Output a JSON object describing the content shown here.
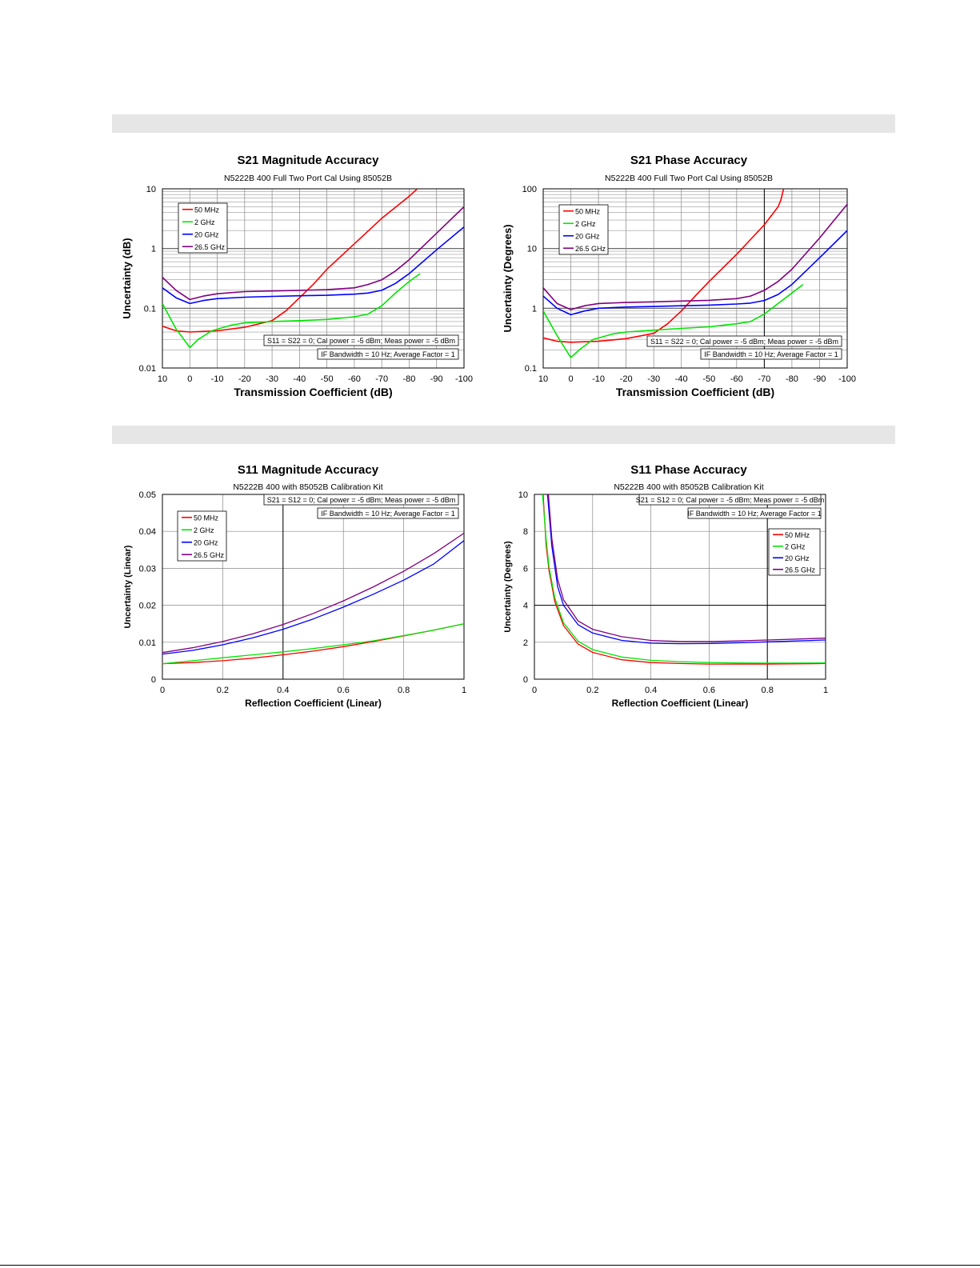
{
  "page": {
    "section_bars": [
      "",
      ""
    ]
  },
  "chart_data": [
    {
      "type": "line",
      "title": "S21 Magnitude Accuracy",
      "subtitle": "N5222B 400 Full Two Port Cal Using 85052B",
      "xlabel": "Transmission Coefficient (dB)",
      "ylabel": "Uncertainty (dB)",
      "xlim": [
        10,
        -100
      ],
      "ylim": [
        0.01,
        10
      ],
      "yscale": "log",
      "xticks": [
        10,
        0,
        -10,
        -20,
        -30,
        -40,
        -50,
        -60,
        -70,
        -80,
        -90,
        -100
      ],
      "yticks": [
        0.01,
        0.1,
        1,
        10
      ],
      "grid": true,
      "legend_position": "top-left",
      "annotations": [
        "S11 = S22 = 0; Cal power = -5 dBm; Meas power = -5 dBm",
        "IF Bandwidth = 10 Hz; Average Factor = 1"
      ],
      "series": [
        {
          "name": "50 MHz",
          "color": "#ff0000",
          "x": [
            10,
            5,
            0,
            -10,
            -20,
            -30,
            -35,
            -40,
            -45,
            -50,
            -60,
            -70,
            -80,
            -83
          ],
          "y": [
            0.05,
            0.042,
            0.04,
            0.042,
            0.048,
            0.062,
            0.09,
            0.15,
            0.25,
            0.45,
            1.2,
            3.2,
            7.5,
            10
          ]
        },
        {
          "name": "2 GHz",
          "color": "#00e600",
          "x": [
            10,
            5,
            0,
            -3,
            -8,
            -15,
            -20,
            -30,
            -40,
            -50,
            -60,
            -65,
            -70,
            -75,
            -80,
            -84
          ],
          "y": [
            0.12,
            0.045,
            0.022,
            0.03,
            0.042,
            0.052,
            0.057,
            0.06,
            0.062,
            0.065,
            0.072,
            0.08,
            0.11,
            0.18,
            0.28,
            0.38
          ]
        },
        {
          "name": "20 GHz",
          "color": "#0000ff",
          "x": [
            10,
            5,
            0,
            -5,
            -10,
            -20,
            -30,
            -40,
            -50,
            -60,
            -65,
            -70,
            -75,
            -80,
            -90,
            -100
          ],
          "y": [
            0.22,
            0.15,
            0.12,
            0.135,
            0.145,
            0.153,
            0.158,
            0.162,
            0.165,
            0.172,
            0.18,
            0.2,
            0.26,
            0.38,
            0.95,
            2.3
          ]
        },
        {
          "name": "26.5 GHz",
          "color": "#800080",
          "x": [
            10,
            5,
            0,
            -5,
            -10,
            -20,
            -30,
            -40,
            -50,
            -60,
            -65,
            -70,
            -75,
            -80,
            -90,
            -100
          ],
          "y": [
            0.33,
            0.2,
            0.14,
            0.16,
            0.175,
            0.19,
            0.195,
            0.2,
            0.205,
            0.22,
            0.25,
            0.3,
            0.42,
            0.65,
            1.8,
            5.0
          ]
        }
      ]
    },
    {
      "type": "line",
      "title": "S21 Phase Accuracy",
      "subtitle": "N5222B 400 Full Two Port Cal Using 85052B",
      "xlabel": "Transmission Coefficient (dB)",
      "ylabel": "Uncertainty (Degrees)",
      "xlim": [
        10,
        -100
      ],
      "ylim": [
        0.1,
        100
      ],
      "yscale": "log",
      "xticks": [
        10,
        0,
        -10,
        -20,
        -30,
        -40,
        -50,
        -60,
        -70,
        -80,
        -90,
        -100
      ],
      "yticks": [
        0.1,
        1,
        10,
        100
      ],
      "grid": true,
      "legend_position": "top-left",
      "annotations": [
        "S11 = S22 = 0; Cal power = -5 dBm; Meas power = -5 dBm",
        "IF Bandwidth = 10 Hz; Average Factor = 1"
      ],
      "series": [
        {
          "name": "50 MHz",
          "color": "#ff0000",
          "x": [
            10,
            5,
            0,
            -10,
            -20,
            -30,
            -35,
            -40,
            -45,
            -50,
            -60,
            -70,
            -75,
            -76,
            -77
          ],
          "y": [
            0.32,
            0.28,
            0.27,
            0.28,
            0.31,
            0.38,
            0.55,
            0.9,
            1.6,
            2.8,
            8.0,
            25,
            50,
            65,
            100
          ]
        },
        {
          "name": "2 GHz",
          "color": "#00e600",
          "x": [
            10,
            5,
            0,
            -3,
            -8,
            -15,
            -20,
            -30,
            -40,
            -50,
            -60,
            -65,
            -70,
            -75,
            -80,
            -84
          ],
          "y": [
            0.9,
            0.35,
            0.15,
            0.2,
            0.3,
            0.37,
            0.4,
            0.43,
            0.46,
            0.49,
            0.55,
            0.6,
            0.8,
            1.2,
            1.8,
            2.5
          ]
        },
        {
          "name": "20 GHz",
          "color": "#0000ff",
          "x": [
            10,
            5,
            0,
            -5,
            -10,
            -20,
            -30,
            -40,
            -50,
            -60,
            -65,
            -70,
            -75,
            -80,
            -90,
            -100
          ],
          "y": [
            1.6,
            1.0,
            0.78,
            0.9,
            1.0,
            1.05,
            1.07,
            1.1,
            1.13,
            1.18,
            1.22,
            1.35,
            1.7,
            2.5,
            7.0,
            20
          ]
        },
        {
          "name": "26.5 GHz",
          "color": "#800080",
          "x": [
            10,
            5,
            0,
            -5,
            -10,
            -20,
            -30,
            -40,
            -50,
            -60,
            -65,
            -70,
            -75,
            -80,
            -90,
            -100
          ],
          "y": [
            2.2,
            1.2,
            0.95,
            1.1,
            1.2,
            1.25,
            1.28,
            1.32,
            1.36,
            1.45,
            1.6,
            2.0,
            2.8,
            4.5,
            15,
            55
          ]
        }
      ]
    },
    {
      "type": "line",
      "title": "S11 Magnitude Accuracy",
      "subtitle": "N5222B 400 with 85052B Calibration Kit",
      "xlabel": "Reflection Coefficient (Linear)",
      "ylabel": "Uncertainty (Linear)",
      "xlim": [
        0,
        1
      ],
      "ylim": [
        0,
        0.05
      ],
      "yscale": "linear",
      "xticks": [
        0,
        0.2,
        0.4,
        0.6,
        0.8,
        1
      ],
      "yticks": [
        0,
        0.01,
        0.02,
        0.03,
        0.04,
        0.05
      ],
      "ytick_labels": [
        "0",
        "0.01",
        "0.02",
        "0.03",
        "0.04",
        "0.05"
      ],
      "grid": true,
      "legend_position": "top-left",
      "annotations": [
        "S21 = S12 = 0; Cal power = -5 dBm; Meas power = -5 dBm",
        "IF Bandwidth = 10 Hz; Average Factor = 1"
      ],
      "series": [
        {
          "name": "50 MHz",
          "color": "#ff0000",
          "x": [
            0,
            0.1,
            0.2,
            0.3,
            0.4,
            0.5,
            0.6,
            0.7,
            0.8,
            0.9,
            1
          ],
          "y": [
            0.0042,
            0.0045,
            0.005,
            0.0057,
            0.0066,
            0.0076,
            0.0088,
            0.0102,
            0.0117,
            0.0133,
            0.015
          ]
        },
        {
          "name": "2 GHz",
          "color": "#00e600",
          "x": [
            0,
            0.1,
            0.2,
            0.3,
            0.4,
            0.5,
            0.6,
            0.7,
            0.8,
            0.9,
            1
          ],
          "y": [
            0.0042,
            0.005,
            0.0058,
            0.0066,
            0.0074,
            0.0083,
            0.0093,
            0.0104,
            0.0118,
            0.0133,
            0.015
          ]
        },
        {
          "name": "20 GHz",
          "color": "#0000ff",
          "x": [
            0,
            0.1,
            0.2,
            0.3,
            0.4,
            0.5,
            0.6,
            0.7,
            0.8,
            0.9,
            1
          ],
          "y": [
            0.0068,
            0.0078,
            0.0093,
            0.0112,
            0.0135,
            0.0163,
            0.0195,
            0.023,
            0.0268,
            0.0312,
            0.0375
          ]
        },
        {
          "name": "26.5 GHz",
          "color": "#800080",
          "x": [
            0,
            0.1,
            0.2,
            0.3,
            0.4,
            0.5,
            0.6,
            0.7,
            0.8,
            0.9,
            1
          ],
          "y": [
            0.0072,
            0.0085,
            0.0102,
            0.0123,
            0.0148,
            0.0178,
            0.0212,
            0.025,
            0.0292,
            0.034,
            0.0395
          ]
        }
      ]
    },
    {
      "type": "line",
      "title": "S11 Phase Accuracy",
      "subtitle": "N5222B 400 with 85052B Calibration Kit",
      "xlabel": "Reflection Coefficient (Linear)",
      "ylabel": "Uncertainty (Degrees)",
      "xlim": [
        0,
        1
      ],
      "ylim": [
        0,
        10
      ],
      "yscale": "linear",
      "xticks": [
        0,
        0.2,
        0.4,
        0.6,
        0.8,
        1
      ],
      "yticks": [
        0,
        2,
        4,
        6,
        8,
        10
      ],
      "grid": true,
      "legend_position": "top-right",
      "annotations": [
        "S21 = S12 = 0; Cal power = -5 dBm; Meas power = -5 dBm",
        "IF Bandwidth = 10 Hz; Average Factor = 1"
      ],
      "series": [
        {
          "name": "50 MHz",
          "color": "#ff0000",
          "x": [
            0.03,
            0.04,
            0.05,
            0.07,
            0.1,
            0.15,
            0.2,
            0.3,
            0.4,
            0.5,
            0.6,
            0.7,
            0.8,
            1
          ],
          "y": [
            10,
            7.3,
            5.9,
            4.2,
            2.9,
            1.9,
            1.45,
            1.05,
            0.9,
            0.85,
            0.82,
            0.82,
            0.82,
            0.85
          ]
        },
        {
          "name": "2 GHz",
          "color": "#00e600",
          "x": [
            0.028,
            0.04,
            0.05,
            0.07,
            0.1,
            0.15,
            0.2,
            0.3,
            0.4,
            0.5,
            0.6,
            0.7,
            0.8,
            1
          ],
          "y": [
            10,
            7.6,
            6.1,
            4.4,
            3.05,
            2.05,
            1.6,
            1.2,
            1.02,
            0.95,
            0.9,
            0.88,
            0.87,
            0.88
          ]
        },
        {
          "name": "20 GHz",
          "color": "#0000ff",
          "x": [
            0.045,
            0.06,
            0.08,
            0.1,
            0.15,
            0.2,
            0.3,
            0.4,
            0.5,
            0.6,
            0.7,
            0.8,
            1
          ],
          "y": [
            10,
            7.2,
            5.0,
            4.0,
            2.95,
            2.5,
            2.1,
            1.95,
            1.92,
            1.93,
            1.97,
            2.02,
            2.12
          ]
        },
        {
          "name": "26.5 GHz",
          "color": "#800080",
          "x": [
            0.048,
            0.06,
            0.08,
            0.1,
            0.15,
            0.2,
            0.3,
            0.4,
            0.5,
            0.6,
            0.7,
            0.8,
            1
          ],
          "y": [
            10,
            7.6,
            5.4,
            4.3,
            3.15,
            2.7,
            2.3,
            2.1,
            2.04,
            2.04,
            2.07,
            2.12,
            2.22
          ]
        }
      ]
    }
  ]
}
